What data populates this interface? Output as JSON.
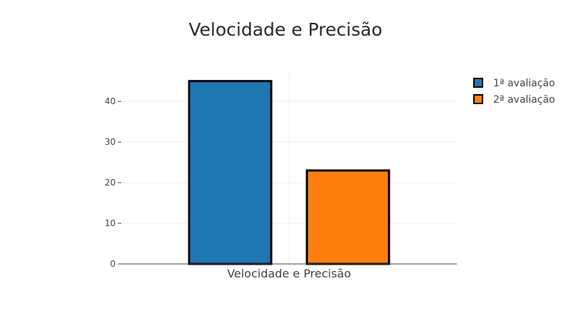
{
  "chart_data": {
    "type": "bar",
    "title": "Velocidade e Precisão",
    "categories": [
      "Velocidade e Precisão"
    ],
    "series": [
      {
        "name": "1ª avaliação",
        "values": [
          45
        ],
        "color": "#1f77b4"
      },
      {
        "name": "2ª avaliação",
        "values": [
          23
        ],
        "color": "#ff7f0e"
      }
    ],
    "xlabel": "",
    "ylabel": "",
    "ylim": [
      0,
      47.4
    ],
    "yticks": [
      0,
      10,
      20,
      30,
      40
    ],
    "grid": true,
    "legend_position": "top-right",
    "bar_outline_color": "#000000"
  }
}
